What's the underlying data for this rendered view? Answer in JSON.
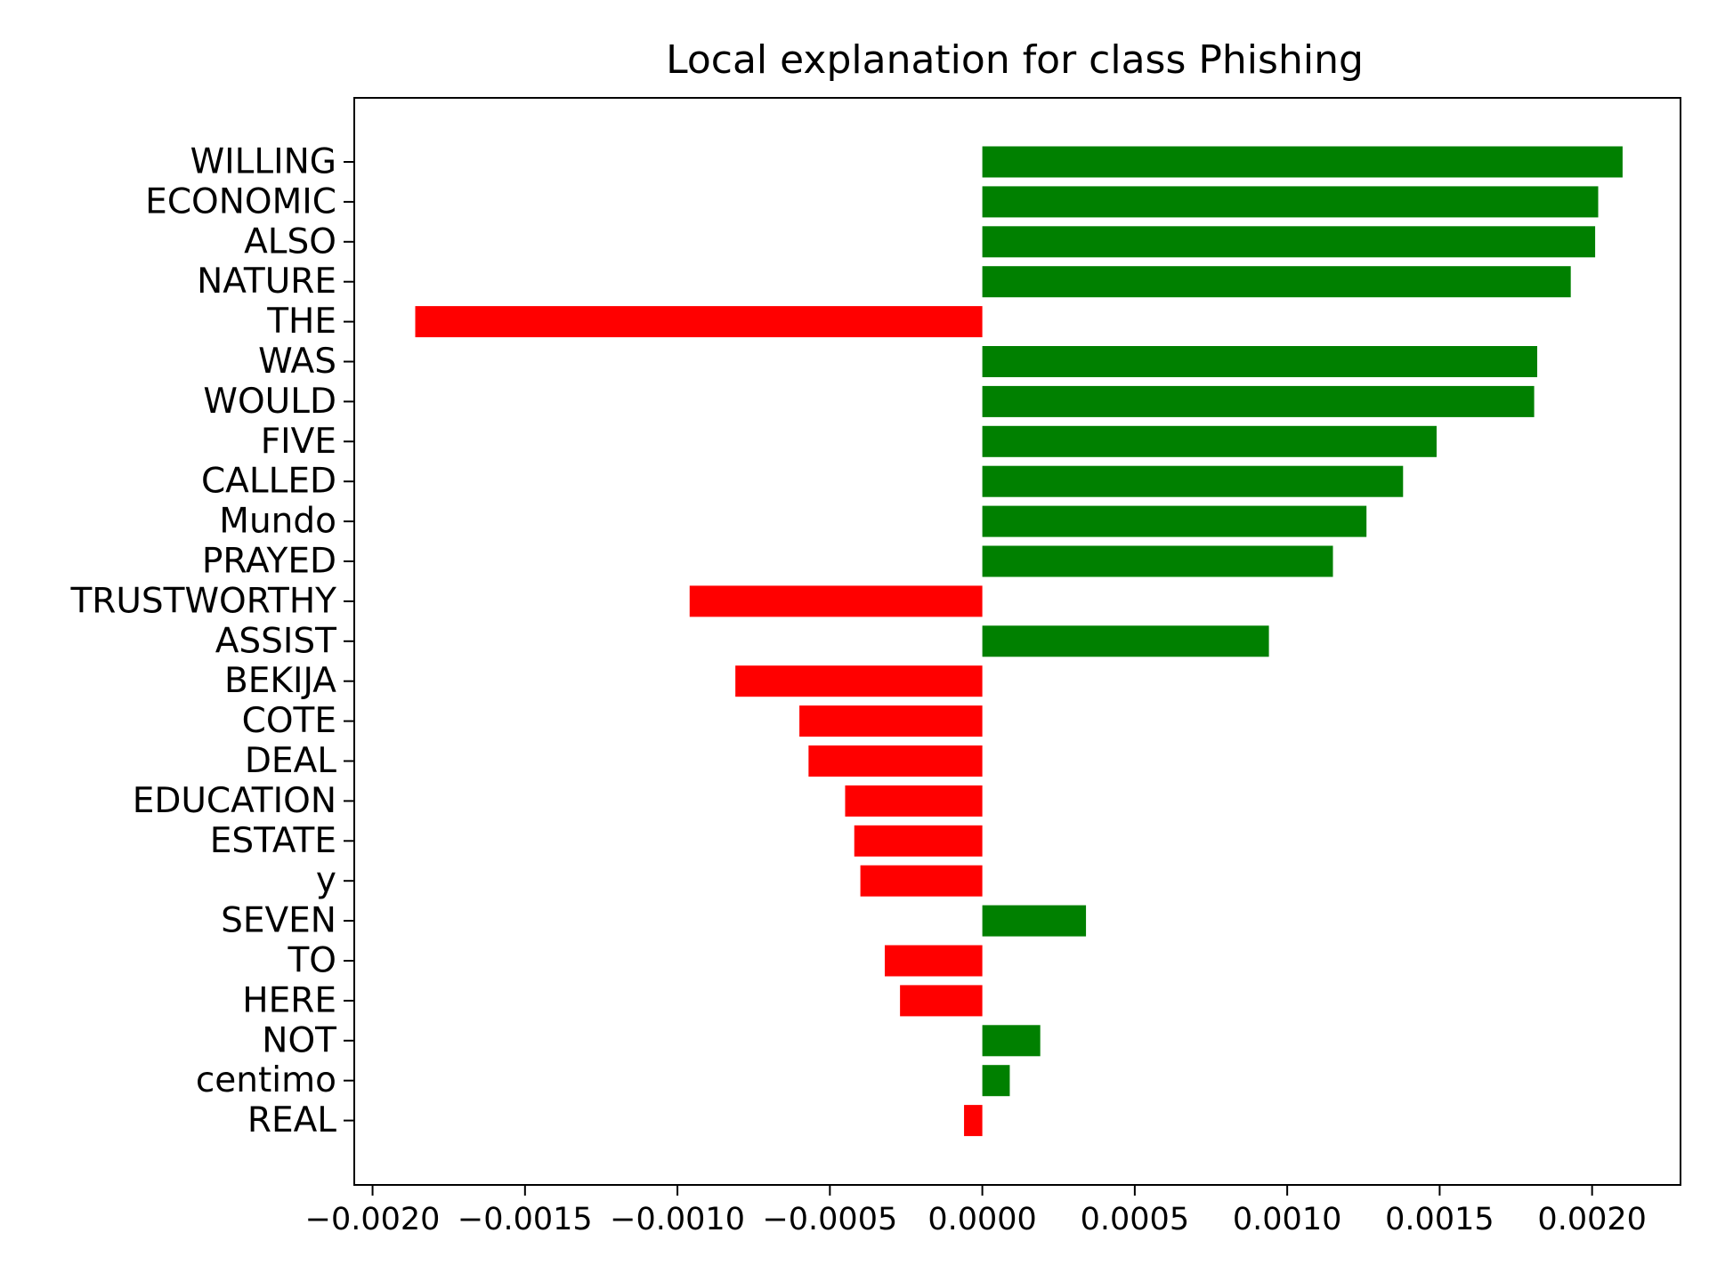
{
  "chart_data": {
    "type": "bar",
    "orientation": "horizontal",
    "title": "Local explanation for class Phishing",
    "xlabel": "",
    "ylabel": "",
    "xlim": [
      -0.00206,
      0.00229
    ],
    "x_ticks": [
      "−0.0020",
      "−0.0015",
      "−0.0010",
      "−0.0005",
      "0.0000",
      "0.0005",
      "0.0010",
      "0.0015",
      "0.0020"
    ],
    "x_tick_values": [
      -0.002,
      -0.0015,
      -0.001,
      -0.0005,
      0.0,
      0.0005,
      0.001,
      0.0015,
      0.002
    ],
    "grid": false,
    "legend": "none",
    "colors": {
      "positive": "#008000",
      "negative": "#ff0000"
    },
    "categories": [
      "WILLING",
      "ECONOMIC",
      "ALSO",
      "NATURE",
      "THE",
      "WAS",
      "WOULD",
      "FIVE",
      "CALLED",
      "Mundo",
      "PRAYED",
      "TRUSTWORTHY",
      "ASSIST",
      "BEKIJA",
      "COTE",
      "DEAL",
      "EDUCATION",
      "ESTATE",
      "y",
      "SEVEN",
      "TO",
      "HERE",
      "NOT",
      "centimo",
      "REAL"
    ],
    "values": [
      0.0021,
      0.00202,
      0.00201,
      0.00193,
      -0.00186,
      0.00182,
      0.00181,
      0.00149,
      0.00138,
      0.00126,
      0.00115,
      -0.00096,
      0.00094,
      -0.00081,
      -0.0006,
      -0.00057,
      -0.00045,
      -0.00042,
      -0.0004,
      0.00034,
      -0.00032,
      -0.00027,
      0.00019,
      9e-05,
      -6e-05
    ]
  }
}
